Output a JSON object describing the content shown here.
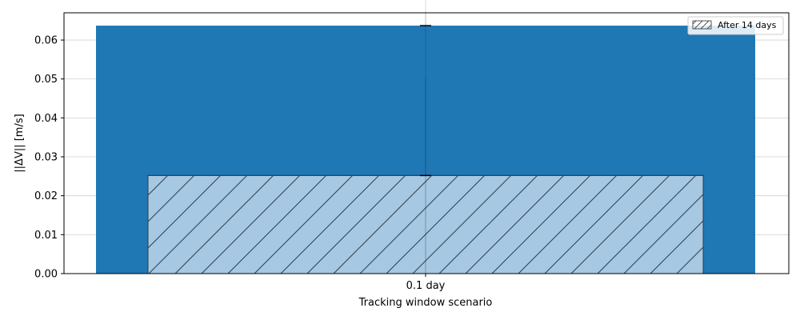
{
  "chart_data": {
    "type": "bar",
    "categories": [
      "0.1 day"
    ],
    "series": [
      {
        "values": [
          0.0637
        ],
        "color": "#1f77b4",
        "error": [
          0.0637
        ]
      },
      {
        "name": "After 14 days",
        "values": [
          0.0252
        ],
        "color": "#a6c8e2",
        "hatch": "/",
        "error": [
          0.0252
        ]
      }
    ],
    "xlabel": "Tracking window scenario",
    "ylabel": "||ΔV|| [m/s]",
    "ylim": [
      0,
      0.067
    ],
    "yticks": [
      0.0,
      0.01,
      0.02,
      0.03,
      0.04,
      0.05,
      0.06
    ],
    "ytick_labels": [
      "0.00",
      "0.01",
      "0.02",
      "0.03",
      "0.04",
      "0.05",
      "0.06"
    ],
    "grid": true,
    "legend_position": "top-right"
  }
}
